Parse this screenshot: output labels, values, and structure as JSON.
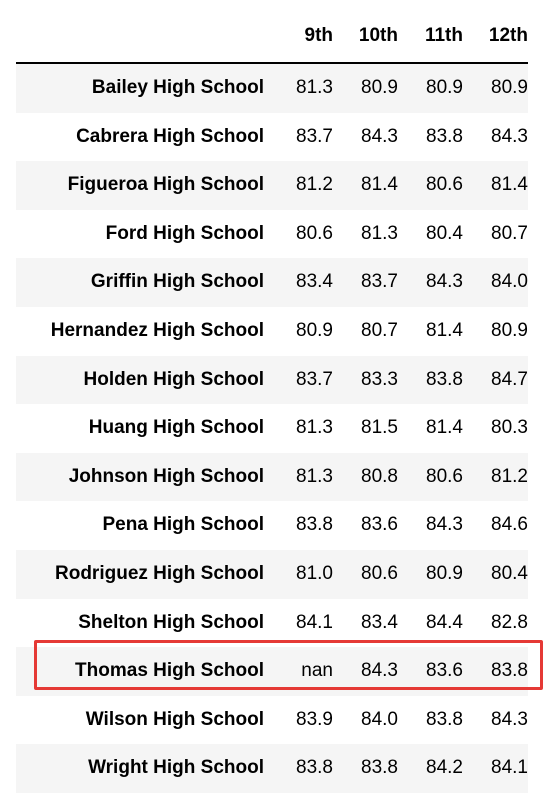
{
  "table": {
    "index_header": "",
    "columns": [
      "9th",
      "10th",
      "11th",
      "12th"
    ],
    "rows": [
      {
        "school": "Bailey High School",
        "values": [
          "81.3",
          "80.9",
          "80.9",
          "80.9"
        ]
      },
      {
        "school": "Cabrera High School",
        "values": [
          "83.7",
          "84.3",
          "83.8",
          "84.3"
        ]
      },
      {
        "school": "Figueroa High School",
        "values": [
          "81.2",
          "81.4",
          "80.6",
          "81.4"
        ]
      },
      {
        "school": "Ford High School",
        "values": [
          "80.6",
          "81.3",
          "80.4",
          "80.7"
        ]
      },
      {
        "school": "Griffin High School",
        "values": [
          "83.4",
          "83.7",
          "84.3",
          "84.0"
        ]
      },
      {
        "school": "Hernandez High School",
        "values": [
          "80.9",
          "80.7",
          "81.4",
          "80.9"
        ]
      },
      {
        "school": "Holden High School",
        "values": [
          "83.7",
          "83.3",
          "83.8",
          "84.7"
        ]
      },
      {
        "school": "Huang High School",
        "values": [
          "81.3",
          "81.5",
          "81.4",
          "80.3"
        ]
      },
      {
        "school": "Johnson High School",
        "values": [
          "81.3",
          "80.8",
          "80.6",
          "81.2"
        ]
      },
      {
        "school": "Pena High School",
        "values": [
          "83.8",
          "83.6",
          "84.3",
          "84.6"
        ]
      },
      {
        "school": "Rodriguez High School",
        "values": [
          "81.0",
          "80.6",
          "80.9",
          "80.4"
        ]
      },
      {
        "school": "Shelton High School",
        "values": [
          "84.1",
          "83.4",
          "84.4",
          "82.8"
        ]
      },
      {
        "school": "Thomas High School",
        "values": [
          "nan",
          "84.3",
          "83.6",
          "83.8"
        ]
      },
      {
        "school": "Wilson High School",
        "values": [
          "83.9",
          "84.0",
          "83.8",
          "84.3"
        ]
      },
      {
        "school": "Wright High School",
        "values": [
          "83.8",
          "83.8",
          "84.2",
          "84.1"
        ]
      }
    ],
    "highlighted_row": "Thomas High School"
  },
  "colors": {
    "stripe": "#f5f5f5",
    "highlight_border": "#e53935"
  }
}
